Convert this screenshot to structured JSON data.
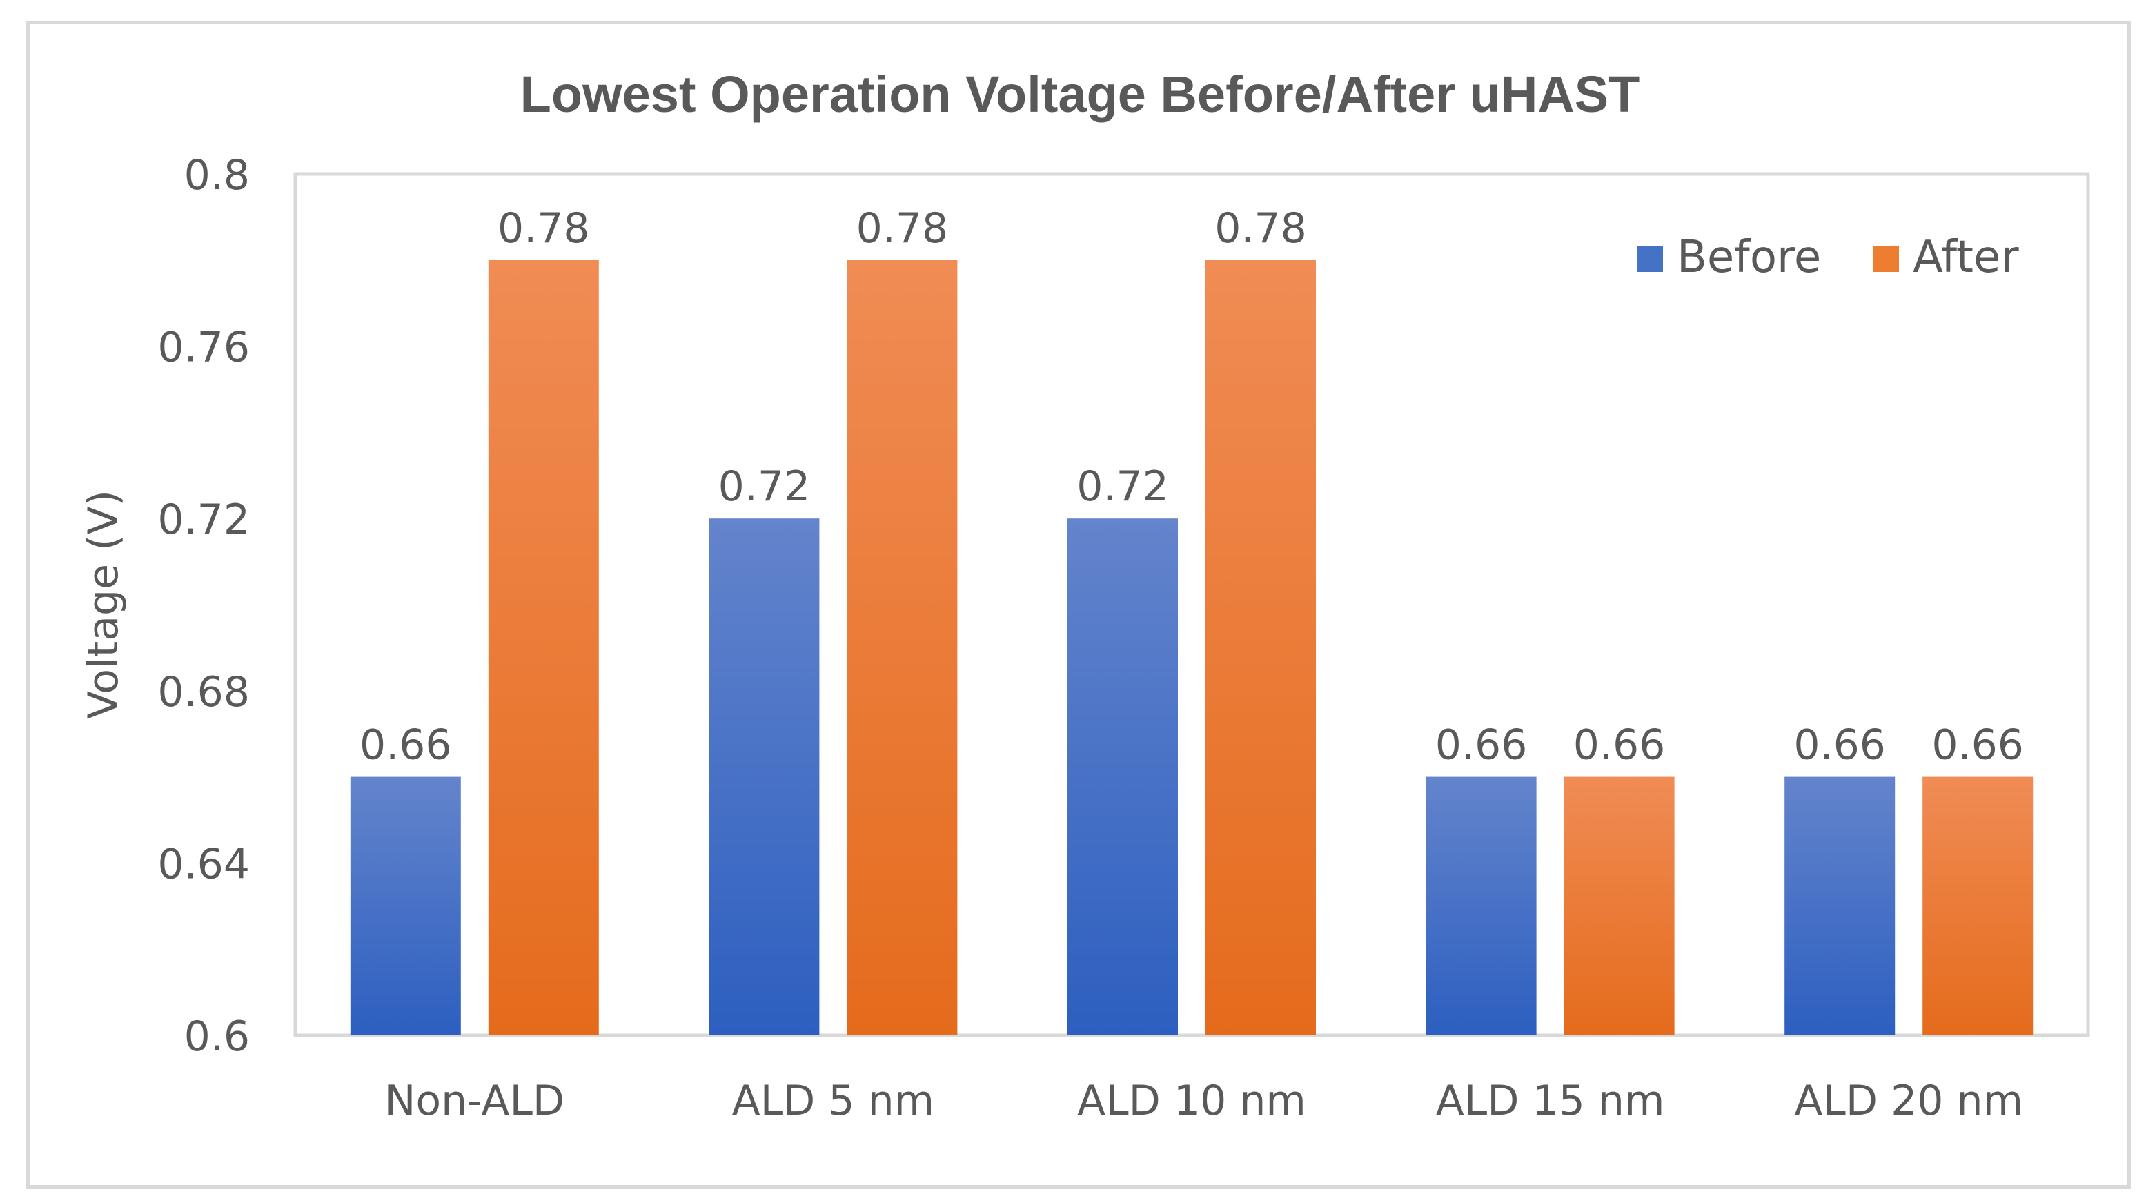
{
  "chart_data": {
    "type": "bar",
    "title": "Lowest Operation Voltage Before/After uHAST",
    "xlabel": "",
    "ylabel": "Voltage (V)",
    "categories": [
      "Non-ALD",
      "ALD 5 nm",
      "ALD 10 nm",
      "ALD 15 nm",
      "ALD 20 nm"
    ],
    "series": [
      {
        "name": "Before",
        "values": [
          0.66,
          0.72,
          0.72,
          0.66,
          0.66
        ],
        "color": "#4472c4"
      },
      {
        "name": "After",
        "values": [
          0.78,
          0.78,
          0.78,
          0.66,
          0.66
        ],
        "color": "#ed7d31"
      }
    ],
    "ylim": [
      0.6,
      0.8
    ],
    "yticks": [
      0.6,
      0.64,
      0.68,
      0.72,
      0.76,
      0.8
    ],
    "ytick_labels": [
      "0.6",
      "0.64",
      "0.68",
      "0.72",
      "0.76",
      "0.8"
    ],
    "data_labels": [
      [
        "0.66",
        "0.72",
        "0.72",
        "0.66",
        "0.66"
      ],
      [
        "0.78",
        "0.78",
        "0.78",
        "0.66",
        "0.66"
      ]
    ],
    "legend_position": "top-right",
    "grid": false
  }
}
